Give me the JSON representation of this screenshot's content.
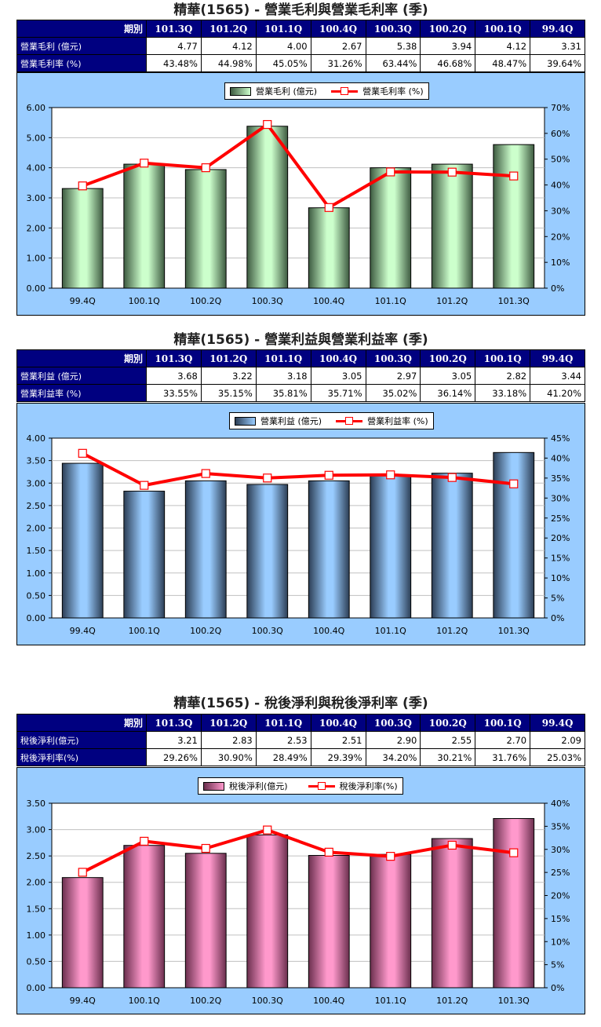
{
  "charts": [
    {
      "title": "精華(1565) - 營業毛利與營業毛利率 (季)",
      "table": {
        "corner": "期別",
        "periods": [
          "101.3Q",
          "101.2Q",
          "101.1Q",
          "100.4Q",
          "100.3Q",
          "100.2Q",
          "100.1Q",
          "99.4Q"
        ],
        "rows": [
          {
            "label": "營業毛利 (億元)",
            "values": [
              "4.77",
              "4.12",
              "4.00",
              "2.67",
              "5.38",
              "3.94",
              "4.12",
              "3.31"
            ]
          },
          {
            "label": "營業毛利率 (%)",
            "values": [
              "43.48%",
              "44.98%",
              "45.05%",
              "31.26%",
              "63.44%",
              "46.68%",
              "48.47%",
              "39.64%"
            ]
          }
        ]
      },
      "legend": {
        "bar": "營業毛利 (億元)",
        "line": "營業毛利率 (%)"
      },
      "colors": {
        "bar_light": "#ccffcc",
        "bar_dark": "#3d5a40",
        "line": "#ff0000",
        "background": "#99ccff"
      }
    },
    {
      "title": "精華(1565) - 營業利益與營業利益率 (季)",
      "table": {
        "corner": "期別",
        "periods": [
          "101.3Q",
          "101.2Q",
          "101.1Q",
          "100.4Q",
          "100.3Q",
          "100.2Q",
          "100.1Q",
          "99.4Q"
        ],
        "rows": [
          {
            "label": "營業利益 (億元)",
            "values": [
              "3.68",
              "3.22",
              "3.18",
              "3.05",
              "2.97",
              "3.05",
              "2.82",
              "3.44"
            ]
          },
          {
            "label": "營業利益率 (%)",
            "values": [
              "33.55%",
              "35.15%",
              "35.81%",
              "35.71%",
              "35.02%",
              "36.14%",
              "33.18%",
              "41.20%"
            ]
          }
        ]
      },
      "legend": {
        "bar": "營業利益 (億元)",
        "line": "營業利益率 (%)"
      },
      "colors": {
        "bar_light": "#99ccff",
        "bar_dark": "#2c3e55",
        "line": "#ff0000",
        "background": "#99ccff"
      }
    },
    {
      "title": "精華(1565) - 稅後淨利與稅後淨利率 (季)",
      "table": {
        "corner": "期別",
        "periods": [
          "101.3Q",
          "101.2Q",
          "101.1Q",
          "100.4Q",
          "100.3Q",
          "100.2Q",
          "100.1Q",
          "99.4Q"
        ],
        "rows": [
          {
            "label": "稅後淨利(億元)",
            "values": [
              "3.21",
              "2.83",
              "2.53",
              "2.51",
              "2.90",
              "2.55",
              "2.70",
              "2.09"
            ]
          },
          {
            "label": "稅後淨利率(%)",
            "values": [
              "29.26%",
              "30.90%",
              "28.49%",
              "29.39%",
              "34.20%",
              "30.21%",
              "31.76%",
              "25.03%"
            ]
          }
        ]
      },
      "legend": {
        "bar": "稅後淨利(億元)",
        "line": "稅後淨利率(%)"
      },
      "colors": {
        "bar_light": "#ff99cc",
        "bar_dark": "#6b2f4e",
        "line": "#ff0000",
        "background": "#99ccff"
      }
    }
  ],
  "chart_data": [
    {
      "type": "bar",
      "title": "精華(1565) - 營業毛利與營業毛利率 (季)",
      "categories": [
        "99.4Q",
        "100.1Q",
        "100.2Q",
        "100.3Q",
        "100.4Q",
        "101.1Q",
        "101.2Q",
        "101.3Q"
      ],
      "series": [
        {
          "name": "營業毛利 (億元)",
          "type": "bar",
          "axis": "left",
          "values": [
            3.31,
            4.12,
            3.94,
            5.38,
            2.67,
            4.0,
            4.12,
            4.77
          ]
        },
        {
          "name": "營業毛利率 (%)",
          "type": "line",
          "axis": "right",
          "values": [
            39.64,
            48.47,
            46.68,
            63.44,
            31.26,
            45.05,
            44.98,
            43.48
          ]
        }
      ],
      "y_left": {
        "min": 0,
        "max": 6,
        "step": 1,
        "ticks": [
          "0.00",
          "1.00",
          "2.00",
          "3.00",
          "4.00",
          "5.00",
          "6.00"
        ]
      },
      "y_right": {
        "min": 0,
        "max": 70,
        "step": 10,
        "ticks": [
          "0%",
          "10%",
          "20%",
          "30%",
          "40%",
          "50%",
          "60%",
          "70%"
        ]
      },
      "grid": true,
      "legend_position": "top"
    },
    {
      "type": "bar",
      "title": "精華(1565) - 營業利益與營業利益率 (季)",
      "categories": [
        "99.4Q",
        "100.1Q",
        "100.2Q",
        "100.3Q",
        "100.4Q",
        "101.1Q",
        "101.2Q",
        "101.3Q"
      ],
      "series": [
        {
          "name": "營業利益 (億元)",
          "type": "bar",
          "axis": "left",
          "values": [
            3.44,
            2.82,
            3.05,
            2.97,
            3.05,
            3.18,
            3.22,
            3.68
          ]
        },
        {
          "name": "營業利益率 (%)",
          "type": "line",
          "axis": "right",
          "values": [
            41.2,
            33.18,
            36.14,
            35.02,
            35.71,
            35.81,
            35.15,
            33.55
          ]
        }
      ],
      "y_left": {
        "min": 0,
        "max": 4,
        "step": 0.5,
        "ticks": [
          "0.00",
          "0.50",
          "1.00",
          "1.50",
          "2.00",
          "2.50",
          "3.00",
          "3.50",
          "4.00"
        ]
      },
      "y_right": {
        "min": 0,
        "max": 45,
        "step": 5,
        "ticks": [
          "0%",
          "5%",
          "10%",
          "15%",
          "20%",
          "25%",
          "30%",
          "35%",
          "40%",
          "45%"
        ]
      },
      "grid": true,
      "legend_position": "top"
    },
    {
      "type": "bar",
      "title": "精華(1565) - 稅後淨利與稅後淨利率 (季)",
      "categories": [
        "99.4Q",
        "100.1Q",
        "100.2Q",
        "100.3Q",
        "100.4Q",
        "101.1Q",
        "101.2Q",
        "101.3Q"
      ],
      "series": [
        {
          "name": "稅後淨利(億元)",
          "type": "bar",
          "axis": "left",
          "values": [
            2.09,
            2.7,
            2.55,
            2.9,
            2.51,
            2.53,
            2.83,
            3.21
          ]
        },
        {
          "name": "稅後淨利率(%)",
          "type": "line",
          "axis": "right",
          "values": [
            25.03,
            31.76,
            30.21,
            34.2,
            29.39,
            28.49,
            30.9,
            29.26
          ]
        }
      ],
      "y_left": {
        "min": 0,
        "max": 3.5,
        "step": 0.5,
        "ticks": [
          "0.00",
          "0.50",
          "1.00",
          "1.50",
          "2.00",
          "2.50",
          "3.00",
          "3.50"
        ]
      },
      "y_right": {
        "min": 0,
        "max": 40,
        "step": 5,
        "ticks": [
          "0%",
          "5%",
          "10%",
          "15%",
          "20%",
          "25%",
          "30%",
          "35%",
          "40%"
        ]
      },
      "grid": true,
      "legend_position": "top"
    }
  ]
}
